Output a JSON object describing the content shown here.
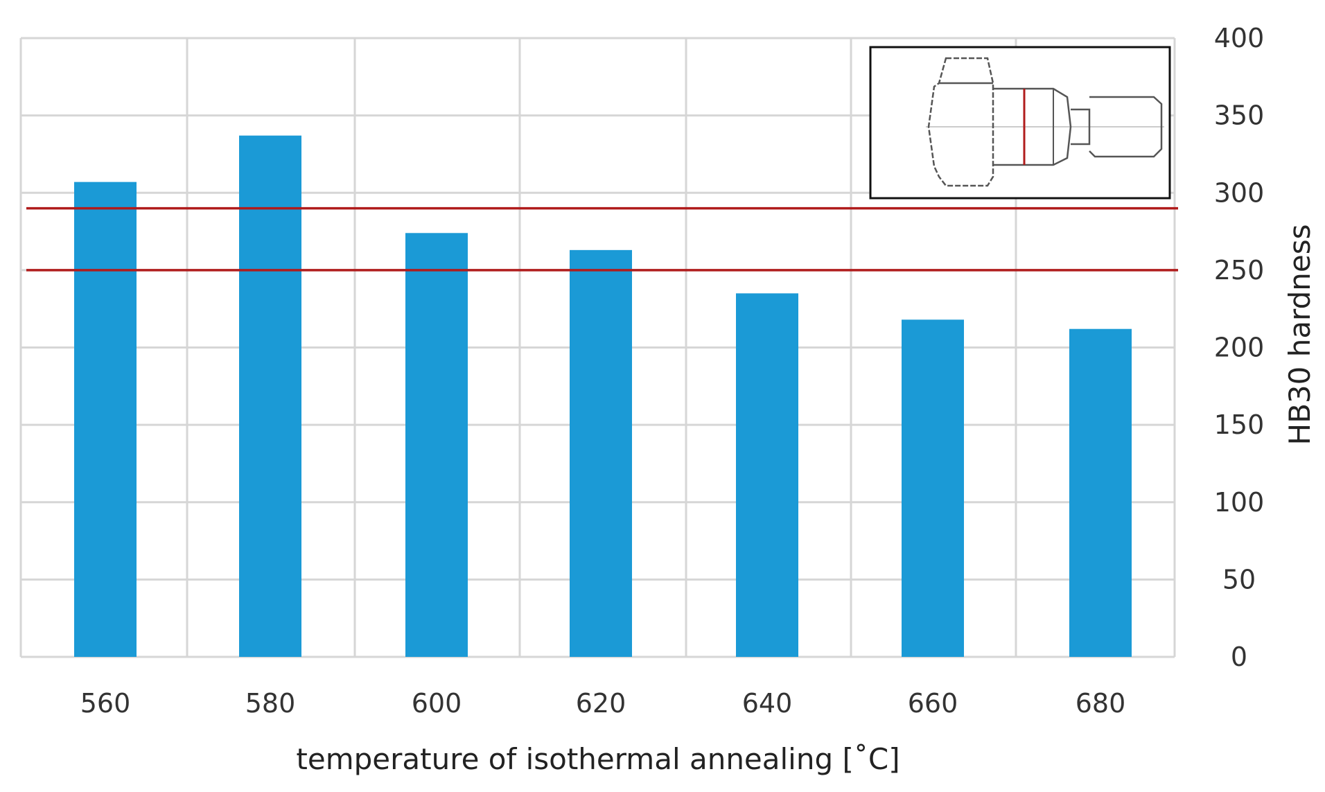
{
  "chart_data": {
    "type": "bar",
    "categories": [
      "560",
      "580",
      "600",
      "620",
      "640",
      "660",
      "680"
    ],
    "values": [
      307,
      337,
      274,
      263,
      235,
      218,
      212
    ],
    "xlabel": "temperature of isothermal annealing [˚C]",
    "ylabel": "HB30 hardness",
    "ylim": [
      0,
      400
    ],
    "yticks": [
      0,
      50,
      100,
      150,
      200,
      250,
      300,
      350,
      400
    ],
    "y_axis_side": "right",
    "grid": true,
    "reference_lines": [
      250,
      290
    ],
    "inset": "specimen sketch with red section line, top-right",
    "colors": {
      "bar": "#1b9ad6",
      "reference_line": "#b01c1c",
      "grid": "#d6d6d6"
    }
  }
}
